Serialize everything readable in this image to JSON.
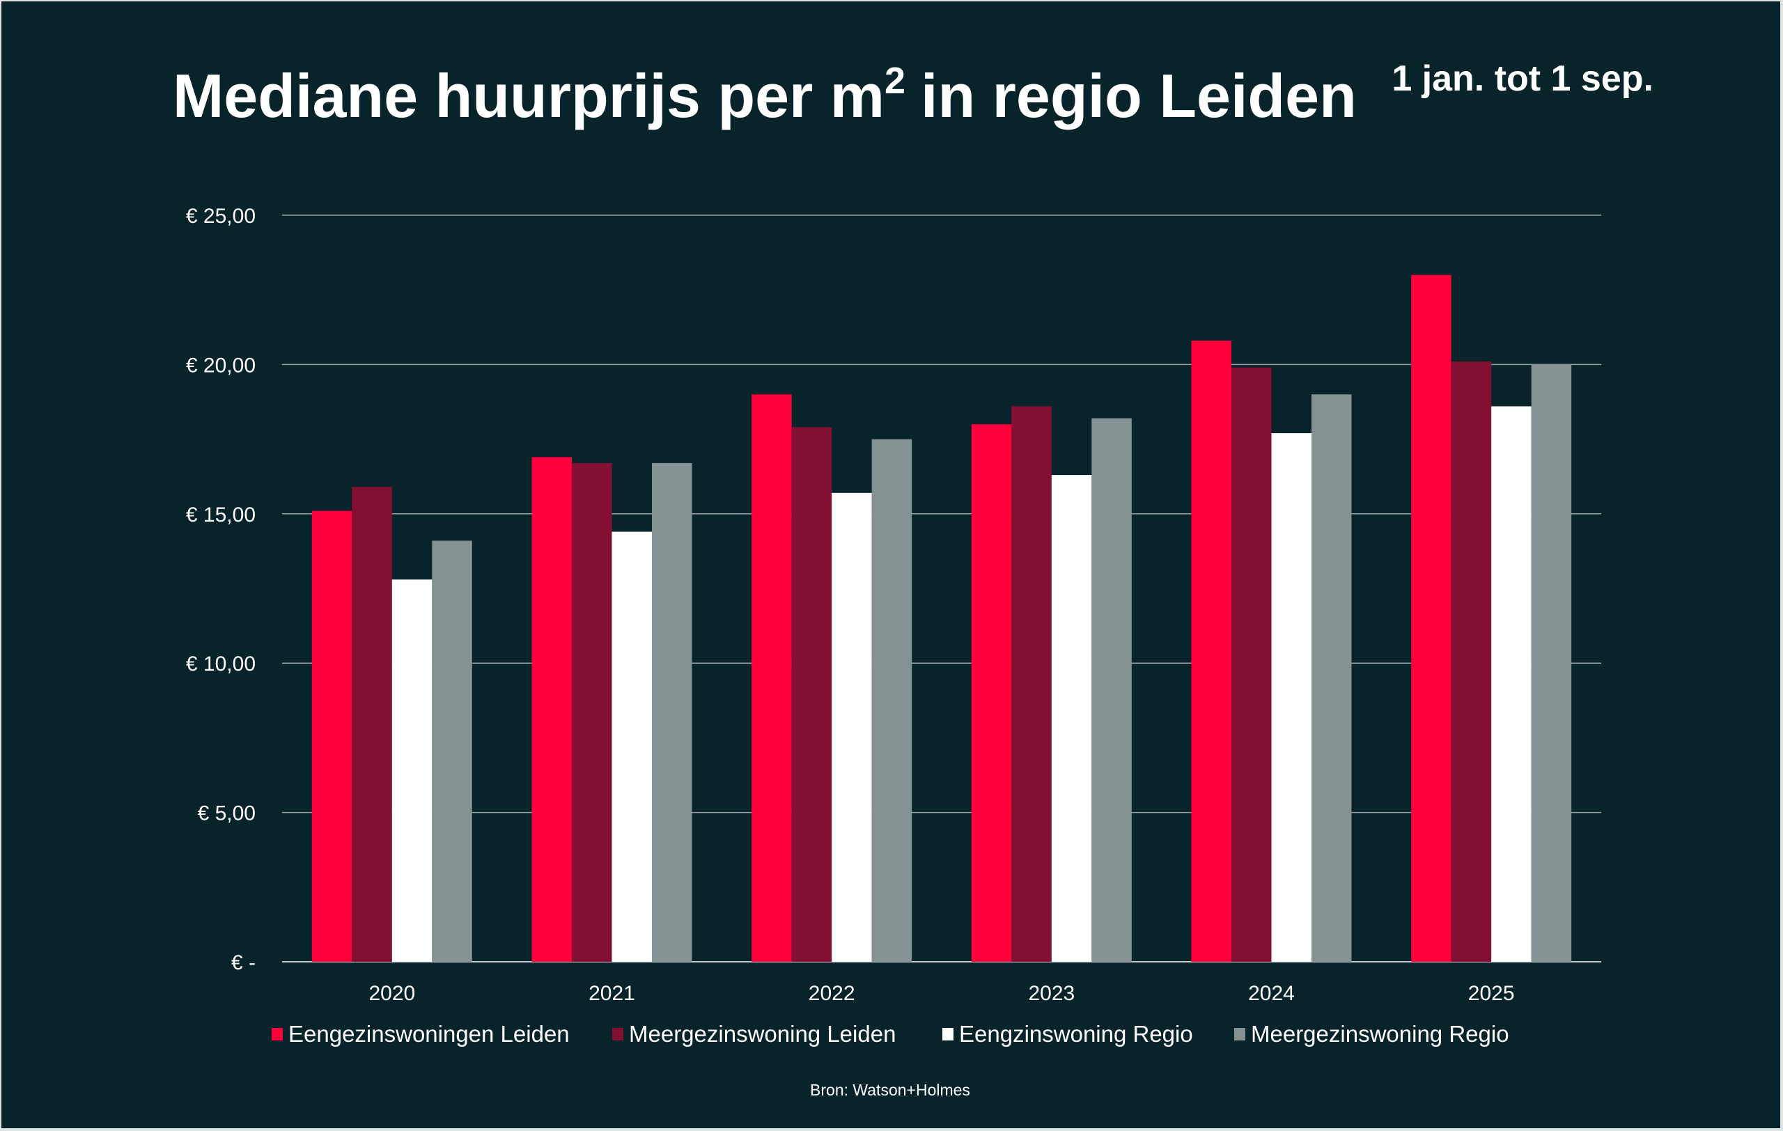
{
  "chart_data": {
    "type": "bar",
    "title": "Mediane huurprijs per m",
    "title_superscript": "2",
    "title_suffix": "in regio Leiden",
    "subtitle": "1 jan. tot 1 sep.",
    "source": "Bron: Watson+Holmes",
    "categories": [
      "2020",
      "2021",
      "2022",
      "2023",
      "2024",
      "2025"
    ],
    "series": [
      {
        "name": "Eengezinswoningen Leiden",
        "color": "#ff003c",
        "values": [
          15.1,
          16.9,
          19.0,
          18.0,
          20.8,
          23.0
        ]
      },
      {
        "name": "Meergezinswoning Leiden",
        "color": "#831033",
        "values": [
          15.9,
          16.7,
          17.9,
          18.6,
          19.9,
          20.1
        ]
      },
      {
        "name": "Eengzinswoning Regio",
        "color": "#ffffff",
        "values": [
          12.8,
          14.4,
          15.7,
          16.3,
          17.7,
          18.6
        ]
      },
      {
        "name": "Meergezinswoning Regio",
        "color": "#849293",
        "values": [
          14.1,
          16.7,
          17.5,
          18.2,
          19.0,
          20.0
        ]
      }
    ],
    "ylim": [
      0,
      25
    ],
    "yticks": [
      0,
      5,
      10,
      15,
      20,
      25
    ],
    "ytick_labels": [
      "€ -",
      "€ 5,00",
      "€ 10,00",
      "€ 15,00",
      "€ 20,00",
      "€ 25,00"
    ],
    "grid": true,
    "legend_position": "bottom",
    "background": "#08232a"
  }
}
